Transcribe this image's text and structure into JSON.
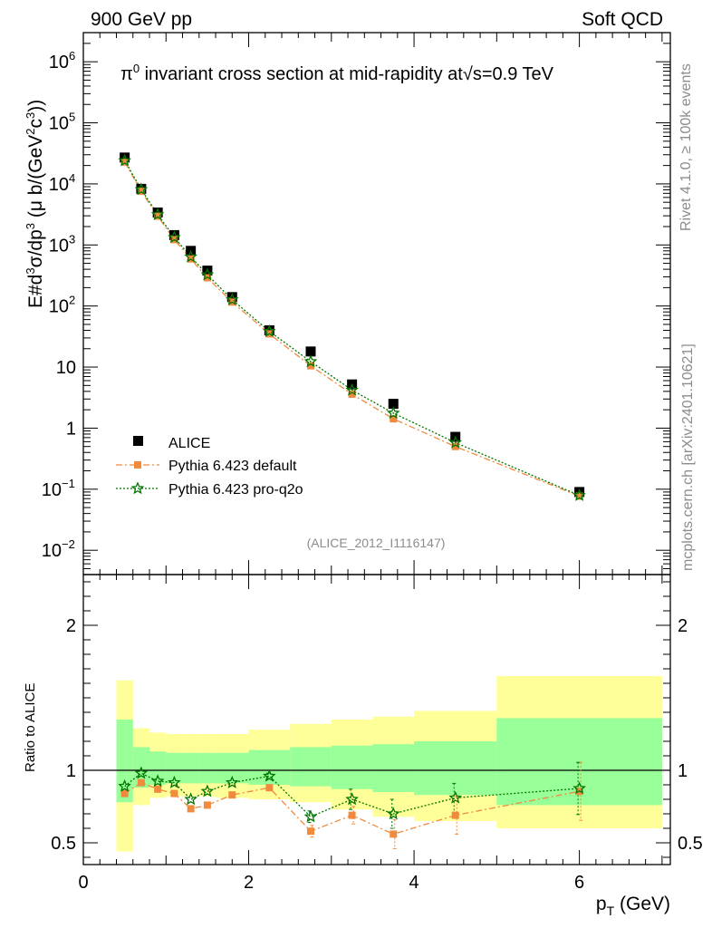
{
  "header": {
    "left": "900 GeV pp",
    "right": "Soft QCD"
  },
  "side_labels": {
    "rivet": "Rivet 4.1.0, ≥ 100k events",
    "mcplots": "mcplots.cern.ch [arXiv:2401.10621]"
  },
  "chart_data": [
    {
      "type": "scatter",
      "panel": "main",
      "title_prefix": "π",
      "title_sup": "0",
      "title_mid": " invariant cross section at mid-rapidity at",
      "title_sqrt": "√s",
      "title_suffix": "=0.9 TeV",
      "ylabel": "E#d³σ/dp³ (μ b/(GeV²c³))",
      "yscale": "log",
      "ylim": [
        0.004,
        3000000
      ],
      "xlim": [
        0,
        7.1
      ],
      "yticks": [
        {
          "value": 1000000,
          "base": "10",
          "exp": "6"
        },
        {
          "value": 100000,
          "base": "10",
          "exp": "5"
        },
        {
          "value": 10000,
          "base": "10",
          "exp": "4"
        },
        {
          "value": 1000,
          "base": "10",
          "exp": "3"
        },
        {
          "value": 100,
          "base": "10",
          "exp": "2"
        },
        {
          "value": 10,
          "base": "10",
          "exp": ""
        },
        {
          "value": 1,
          "base": "1",
          "exp": ""
        },
        {
          "value": 0.1,
          "base": "10",
          "exp": "−1"
        },
        {
          "value": 0.01,
          "base": "10",
          "exp": "−2"
        }
      ],
      "watermark": "(ALICE_2012_I1116147)",
      "legend": [
        "ALICE",
        "Pythia 6.423 default",
        "Pythia 6.423 pro-q2o"
      ],
      "series": [
        {
          "name": "ALICE",
          "x": [
            0.5,
            0.7,
            0.9,
            1.1,
            1.3,
            1.5,
            1.8,
            2.25,
            2.75,
            3.25,
            3.75,
            4.5,
            6.0
          ],
          "y": [
            27000,
            8300,
            3400,
            1450,
            800,
            380,
            140,
            40,
            18,
            5.2,
            2.5,
            0.72,
            0.09
          ]
        },
        {
          "name": "Pythia 6.423 default",
          "x": [
            0.5,
            0.7,
            0.9,
            1.1,
            1.3,
            1.5,
            1.8,
            2.25,
            2.75,
            3.25,
            3.75,
            4.5,
            6.0
          ],
          "y": [
            22800,
            7600,
            2960,
            1220,
            590,
            290,
            116,
            35,
            10.5,
            3.6,
            1.42,
            0.5,
            0.077
          ]
        },
        {
          "name": "Pythia 6.423 pro-q2o",
          "x": [
            0.5,
            0.7,
            0.9,
            1.1,
            1.3,
            1.5,
            1.8,
            2.25,
            2.75,
            3.25,
            3.75,
            4.5,
            6.0
          ],
          "y": [
            24000,
            8100,
            3150,
            1330,
            640,
            325,
            127,
            38.5,
            12.3,
            4.2,
            1.76,
            0.58,
            0.079
          ]
        }
      ]
    },
    {
      "type": "line",
      "panel": "ratio",
      "ylabel": "Ratio to ALICE",
      "xlabel_main": "p",
      "xlabel_sub": "T",
      "xlabel_unit": " (GeV)",
      "ylim": [
        0.35,
        2.35
      ],
      "xlim": [
        0,
        7.1
      ],
      "xticks": [
        {
          "value": 0,
          "label": "0"
        },
        {
          "value": 2,
          "label": "2"
        },
        {
          "value": 4,
          "label": "4"
        },
        {
          "value": 6,
          "label": "6"
        }
      ],
      "yticks": [
        {
          "value": 0.5,
          "label": "0.5"
        },
        {
          "value": 1,
          "label": "1"
        },
        {
          "value": 2,
          "label": "2"
        }
      ],
      "bands": {
        "edges": [
          0.4,
          0.6,
          0.8,
          1.0,
          1.2,
          1.4,
          1.6,
          2.0,
          2.5,
          3.0,
          3.5,
          4.0,
          5.0,
          7.0
        ],
        "yellow_lo": [
          0.44,
          0.76,
          0.81,
          0.82,
          0.82,
          0.82,
          0.81,
          0.8,
          0.78,
          0.73,
          0.68,
          0.65,
          0.6,
          0.38
        ],
        "yellow_hi": [
          1.62,
          1.29,
          1.26,
          1.25,
          1.25,
          1.25,
          1.25,
          1.28,
          1.32,
          1.35,
          1.37,
          1.41,
          1.65,
          1.65
        ],
        "green_lo": [
          0.78,
          0.88,
          0.9,
          0.91,
          0.91,
          0.91,
          0.91,
          0.9,
          0.89,
          0.87,
          0.85,
          0.83,
          0.76,
          0.76
        ],
        "green_hi": [
          1.35,
          1.16,
          1.13,
          1.12,
          1.12,
          1.12,
          1.12,
          1.14,
          1.16,
          1.17,
          1.18,
          1.2,
          1.36,
          1.36
        ]
      },
      "series": [
        {
          "name": "Pythia 6.423 default",
          "x": [
            0.5,
            0.7,
            0.9,
            1.1,
            1.3,
            1.5,
            1.8,
            2.25,
            2.75,
            3.25,
            3.75,
            4.5,
            6.0
          ],
          "y": [
            0.84,
            0.915,
            0.87,
            0.84,
            0.735,
            0.76,
            0.83,
            0.88,
            0.58,
            0.69,
            0.56,
            0.69,
            0.855
          ],
          "err": [
            0.01,
            0.01,
            0.01,
            0.01,
            0.01,
            0.01,
            0.01,
            0.02,
            0.04,
            0.06,
            0.1,
            0.13,
            0.2
          ]
        },
        {
          "name": "Pythia 6.423 pro-q2o",
          "x": [
            0.5,
            0.7,
            0.9,
            1.1,
            1.3,
            1.5,
            1.8,
            2.25,
            2.75,
            3.25,
            3.75,
            4.5,
            6.0
          ],
          "y": [
            0.89,
            0.98,
            0.925,
            0.915,
            0.8,
            0.855,
            0.915,
            0.96,
            0.68,
            0.8,
            0.7,
            0.81,
            0.875
          ],
          "err": [
            0.01,
            0.01,
            0.01,
            0.01,
            0.01,
            0.01,
            0.01,
            0.02,
            0.04,
            0.07,
            0.1,
            0.1,
            0.18
          ]
        }
      ]
    }
  ],
  "colors": {
    "alice": "#000000",
    "default": "#f08a3c",
    "proq2o": "#007700",
    "yellow": "#ffff99",
    "green": "#99ff99"
  }
}
